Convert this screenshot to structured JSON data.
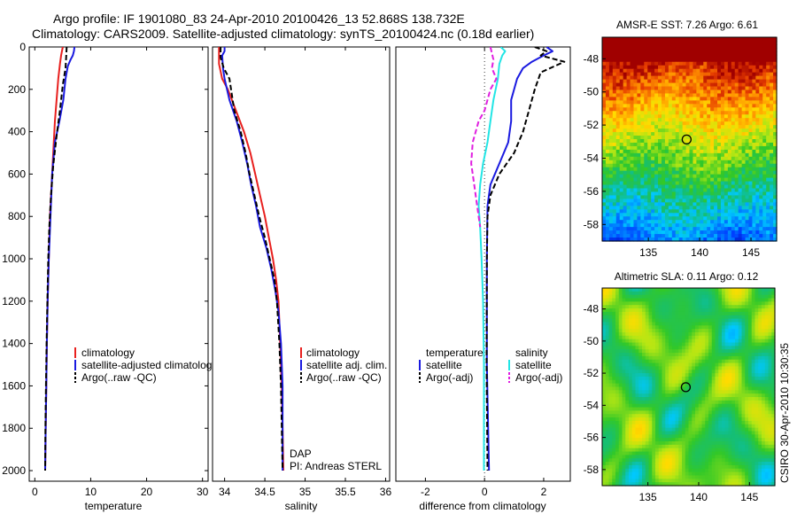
{
  "header": {
    "line1": "Argo profile: IF 1901080_83 24-Apr-2010 20100426_13 52.868S 138.732E",
    "line2": "Climatology: CARS2009. Satellite-adjusted climatology: synTS_20100424.nc (0.18d earlier)"
  },
  "colors": {
    "climatology": "#e8201e",
    "satellite": "#1a1ae0",
    "argo": "#000000",
    "sat_salinity": "#22e5e5",
    "argo_salinity": "#e020e0"
  },
  "chart_data": [
    {
      "id": "temperature",
      "type": "line",
      "xlabel": "temperature",
      "ylabel": "",
      "xlim": [
        -1,
        31
      ],
      "ylim": [
        2050,
        0
      ],
      "xticks": [
        "0",
        "10",
        "20",
        "30"
      ],
      "yticks": [
        "0",
        "200",
        "400",
        "600",
        "800",
        "1000",
        "1200",
        "1400",
        "1600",
        "1800",
        "2000"
      ],
      "legend": [
        "climatology",
        "satellite-adjusted climatology",
        "Argo(..raw -QC)"
      ],
      "series": [
        {
          "name": "climatology",
          "color": "#e8201e",
          "dash": "",
          "points": [
            [
              5.0,
              0
            ],
            [
              4.7,
              40
            ],
            [
              4.5,
              80
            ],
            [
              4.2,
              150
            ],
            [
              3.9,
              250
            ],
            [
              3.6,
              350
            ],
            [
              3.3,
              500
            ],
            [
              3.0,
              650
            ],
            [
              2.7,
              800
            ],
            [
              2.5,
              1000
            ],
            [
              2.3,
              1200
            ],
            [
              2.15,
              1400
            ],
            [
              2.05,
              1600
            ],
            [
              1.95,
              1800
            ],
            [
              1.85,
              2000
            ]
          ]
        },
        {
          "name": "satellite-adjusted climatology",
          "color": "#1a1ae0",
          "dash": "",
          "points": [
            [
              7.1,
              0
            ],
            [
              7.0,
              20
            ],
            [
              6.8,
              40
            ],
            [
              6.4,
              60
            ],
            [
              5.9,
              90
            ],
            [
              5.5,
              150
            ],
            [
              5.1,
              250
            ],
            [
              4.4,
              350
            ],
            [
              3.6,
              450
            ],
            [
              3.1,
              600
            ],
            [
              2.8,
              800
            ],
            [
              2.5,
              1000
            ],
            [
              2.3,
              1200
            ],
            [
              2.15,
              1400
            ],
            [
              2.05,
              1600
            ],
            [
              1.95,
              1800
            ],
            [
              1.85,
              2000
            ]
          ]
        },
        {
          "name": "Argo(..raw -QC)",
          "color": "#000000",
          "dash": "6,3",
          "points": [
            [
              5.7,
              0
            ],
            [
              5.6,
              50
            ],
            [
              5.5,
              100
            ],
            [
              5.0,
              180
            ],
            [
              4.5,
              300
            ],
            [
              3.9,
              420
            ],
            [
              3.3,
              560
            ],
            [
              2.9,
              700
            ],
            [
              2.6,
              850
            ],
            [
              2.4,
              1000
            ],
            [
              2.25,
              1200
            ],
            [
              2.1,
              1400
            ],
            [
              2.0,
              1600
            ],
            [
              1.9,
              1800
            ],
            [
              1.85,
              2000
            ]
          ]
        }
      ]
    },
    {
      "id": "salinity",
      "type": "line",
      "xlabel": "salinity",
      "ylabel": "",
      "xlim": [
        33.85,
        36.05
      ],
      "ylim": [
        2050,
        0
      ],
      "xticks": [
        "34",
        "34.5",
        "35",
        "35.5",
        "36"
      ],
      "legend": [
        "climatology",
        "satellite adj. clim.",
        "Argo(..raw -QC)"
      ],
      "annotations": [
        "DAP",
        "PI: Andreas STERL"
      ],
      "series": [
        {
          "name": "climatology",
          "color": "#e8201e",
          "dash": "",
          "points": [
            [
              33.93,
              0
            ],
            [
              33.93,
              80
            ],
            [
              33.97,
              150
            ],
            [
              34.04,
              200
            ],
            [
              34.14,
              300
            ],
            [
              34.24,
              400
            ],
            [
              34.32,
              500
            ],
            [
              34.38,
              600
            ],
            [
              34.44,
              700
            ],
            [
              34.5,
              800
            ],
            [
              34.55,
              900
            ],
            [
              34.6,
              1000
            ],
            [
              34.64,
              1100
            ],
            [
              34.67,
              1200
            ],
            [
              34.69,
              1400
            ],
            [
              34.71,
              1600
            ],
            [
              34.72,
              1800
            ],
            [
              34.73,
              2000
            ]
          ]
        },
        {
          "name": "satellite adj. clim.",
          "color": "#1a1ae0",
          "dash": "",
          "points": [
            [
              34.0,
              0
            ],
            [
              34.0,
              20
            ],
            [
              33.97,
              40
            ],
            [
              33.98,
              100
            ],
            [
              34.0,
              150
            ],
            [
              34.06,
              250
            ],
            [
              34.15,
              350
            ],
            [
              34.22,
              450
            ],
            [
              34.28,
              550
            ],
            [
              34.33,
              650
            ],
            [
              34.39,
              750
            ],
            [
              34.44,
              850
            ],
            [
              34.52,
              950
            ],
            [
              34.58,
              1050
            ],
            [
              34.63,
              1150
            ],
            [
              34.67,
              1250
            ],
            [
              34.7,
              1400
            ],
            [
              34.72,
              1600
            ],
            [
              34.72,
              1800
            ],
            [
              34.72,
              2000
            ]
          ]
        },
        {
          "name": "Argo(..raw -QC)",
          "color": "#000000",
          "dash": "6,3",
          "points": [
            [
              33.95,
              0
            ],
            [
              33.95,
              50
            ],
            [
              33.99,
              100
            ],
            [
              34.06,
              150
            ],
            [
              34.08,
              200
            ],
            [
              34.12,
              300
            ],
            [
              34.2,
              400
            ],
            [
              34.26,
              500
            ],
            [
              34.31,
              600
            ],
            [
              34.37,
              700
            ],
            [
              34.43,
              800
            ],
            [
              34.5,
              900
            ],
            [
              34.56,
              1000
            ],
            [
              34.62,
              1100
            ],
            [
              34.65,
              1200
            ],
            [
              34.68,
              1400
            ],
            [
              34.7,
              1600
            ],
            [
              34.71,
              1800
            ],
            [
              34.72,
              2000
            ]
          ]
        }
      ]
    },
    {
      "id": "difference",
      "type": "line",
      "xlabel": "difference from climatology",
      "ylabel": "",
      "xlim": [
        -3,
        2.9
      ],
      "ylim": [
        2050,
        0
      ],
      "xticks": [
        "-2",
        "0",
        "2"
      ],
      "legend": [
        {
          "group": "temperature",
          "items": [
            "satellite",
            "Argo(-adj)"
          ]
        },
        {
          "group": "salinity",
          "items": [
            "satellite",
            "Argo(-adj)"
          ]
        }
      ],
      "series": [
        {
          "name": "temperature satellite",
          "color": "#1a1ae0",
          "dash": "",
          "points": [
            [
              2.1,
              0
            ],
            [
              2.3,
              20
            ],
            [
              2.0,
              40
            ],
            [
              1.6,
              70
            ],
            [
              1.3,
              100
            ],
            [
              1.1,
              150
            ],
            [
              0.9,
              250
            ],
            [
              0.9,
              350
            ],
            [
              0.8,
              450
            ],
            [
              0.5,
              550
            ],
            [
              0.2,
              650
            ],
            [
              0.1,
              750
            ],
            [
              0.08,
              1000
            ],
            [
              0.08,
              1500
            ],
            [
              0.15,
              2000
            ]
          ]
        },
        {
          "name": "temperature Argo(-adj)",
          "color": "#000000",
          "dash": "6,3",
          "points": [
            [
              1.7,
              0
            ],
            [
              2.1,
              20
            ],
            [
              1.9,
              40
            ],
            [
              2.7,
              70
            ],
            [
              1.9,
              120
            ],
            [
              1.7,
              200
            ],
            [
              1.5,
              300
            ],
            [
              1.3,
              400
            ],
            [
              1.0,
              500
            ],
            [
              0.5,
              600
            ],
            [
              0.2,
              700
            ],
            [
              0.1,
              800
            ],
            [
              0.08,
              1000
            ],
            [
              0.07,
              1500
            ],
            [
              0.1,
              2000
            ]
          ]
        },
        {
          "name": "salinity satellite",
          "color": "#22e5e5",
          "dash": "",
          "points": [
            [
              0.55,
              0
            ],
            [
              0.7,
              20
            ],
            [
              0.6,
              40
            ],
            [
              0.5,
              80
            ],
            [
              0.45,
              150
            ],
            [
              0.3,
              250
            ],
            [
              0.2,
              350
            ],
            [
              0.1,
              450
            ],
            [
              -0.05,
              550
            ],
            [
              -0.15,
              650
            ],
            [
              -0.2,
              750
            ],
            [
              -0.15,
              850
            ],
            [
              -0.1,
              1000
            ],
            [
              -0.05,
              1200
            ],
            [
              -0.02,
              1500
            ],
            [
              -0.02,
              2000
            ]
          ]
        },
        {
          "name": "salinity Argo(-adj)",
          "color": "#e020e0",
          "dash": "6,3",
          "points": [
            [
              0.2,
              0
            ],
            [
              0.3,
              60
            ],
            [
              0.25,
              100
            ],
            [
              0.4,
              150
            ],
            [
              0.2,
              200
            ],
            [
              0.0,
              300
            ],
            [
              -0.2,
              350
            ],
            [
              -0.4,
              450
            ],
            [
              -0.45,
              550
            ],
            [
              -0.35,
              650
            ],
            [
              -0.25,
              750
            ],
            [
              -0.15,
              850
            ]
          ]
        }
      ]
    },
    {
      "id": "amsr-sst",
      "type": "heatmap",
      "title": "AMSR-E SST: 7.26 Argo: 6.61",
      "xlim": [
        130.5,
        147.5
      ],
      "ylim": [
        -59.0,
        -46.7
      ],
      "xticks": [
        "135",
        "140",
        "145"
      ],
      "yticks": [
        "-48",
        "-50",
        "-52",
        "-54",
        "-56",
        "-58"
      ],
      "marker": {
        "lon": 138.73,
        "lat": -52.87
      }
    },
    {
      "id": "altimetric-sla",
      "type": "heatmap",
      "title": "Altimetric SLA: 0.11 Argo: 0.12",
      "xlim": [
        130.5,
        147.5
      ],
      "ylim": [
        -59.0,
        -46.7
      ],
      "xticks": [
        "135",
        "140",
        "145"
      ],
      "yticks": [
        "-48",
        "-50",
        "-52",
        "-54",
        "-56",
        "-58"
      ],
      "marker": {
        "lon": 138.73,
        "lat": -52.87
      }
    }
  ],
  "stamp": "CSIRO 30-Apr-2010 10:30:35"
}
